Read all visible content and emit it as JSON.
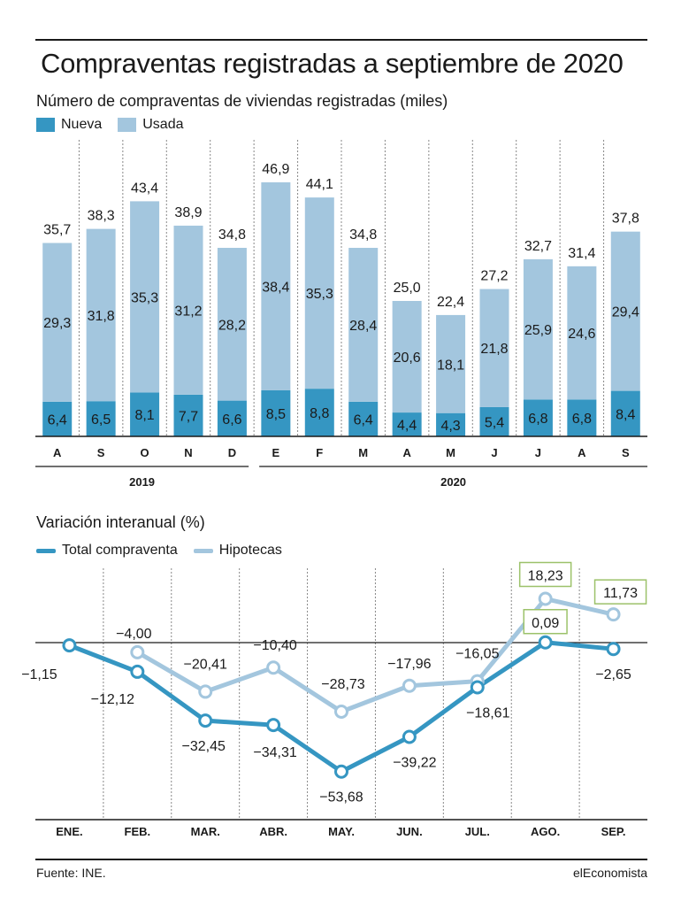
{
  "title": "Compraventas registradas a septiembre de 2020",
  "footer": {
    "source": "Fuente: INE.",
    "brand": "elEconomista"
  },
  "colors": {
    "nueva": "#3596c2",
    "usada": "#a3c6de",
    "total": "#3596c2",
    "hipotecas": "#a3c6de",
    "highlight_box": "#9cc26a",
    "text": "#1a1a1a",
    "grid": "#888888"
  },
  "chart_data": [
    {
      "type": "bar",
      "stacked": true,
      "title": "Número de compraventas de viviendas registradas (miles)",
      "categories": [
        "A",
        "S",
        "O",
        "N",
        "D",
        "E",
        "F",
        "M",
        "A",
        "M",
        "J",
        "J",
        "A",
        "S"
      ],
      "year_groups": [
        {
          "label": "2019",
          "categories": [
            "A",
            "S",
            "O",
            "N",
            "D"
          ]
        },
        {
          "label": "2020",
          "categories": [
            "E",
            "F",
            "M",
            "A",
            "M",
            "J",
            "J",
            "A",
            "S"
          ]
        }
      ],
      "series": [
        {
          "name": "Nueva",
          "values": [
            "6,4",
            "6,5",
            "8,1",
            "7,7",
            "6,6",
            "8,5",
            "8,8",
            "6,4",
            "4,4",
            "4,3",
            "5,4",
            "6,8",
            "6,8",
            "8,4"
          ]
        },
        {
          "name": "Usada",
          "values": [
            "29,3",
            "31,8",
            "35,3",
            "31,2",
            "28,2",
            "38,4",
            "35,3",
            "28,4",
            "20,6",
            "18,1",
            "21,8",
            "25,9",
            "24,6",
            "29,4"
          ]
        }
      ],
      "totals": [
        "35,7",
        "38,3",
        "43,4",
        "38,9",
        "34,8",
        "46,9",
        "44,1",
        "34,8",
        "25,0",
        "22,4",
        "27,2",
        "32,7",
        "31,4",
        "37,8"
      ],
      "ylim": [
        0,
        50
      ]
    },
    {
      "type": "line",
      "title": "Variación interanual (%)",
      "categories": [
        "ENE.",
        "FEB.",
        "MAR.",
        "ABR.",
        "MAY.",
        "JUN.",
        "JUL.",
        "AGO.",
        "SEP."
      ],
      "series": [
        {
          "name": "Total compraventa",
          "values": [
            "−1,15",
            "−12,12",
            "−32,45",
            "−34,31",
            "−53,68",
            "−39,22",
            "−18,61",
            "0,09",
            "−2,65"
          ]
        },
        {
          "name": "Hipotecas",
          "values": [
            null,
            "−4,00",
            "−20,41",
            "−10,40",
            "−28,73",
            "−17,96",
            "−16,05",
            "18,23",
            "11,73"
          ]
        }
      ],
      "highlighted_labels": [
        "18,23",
        "11,73",
        "0,09"
      ],
      "ylim": [
        -60,
        25
      ]
    }
  ]
}
